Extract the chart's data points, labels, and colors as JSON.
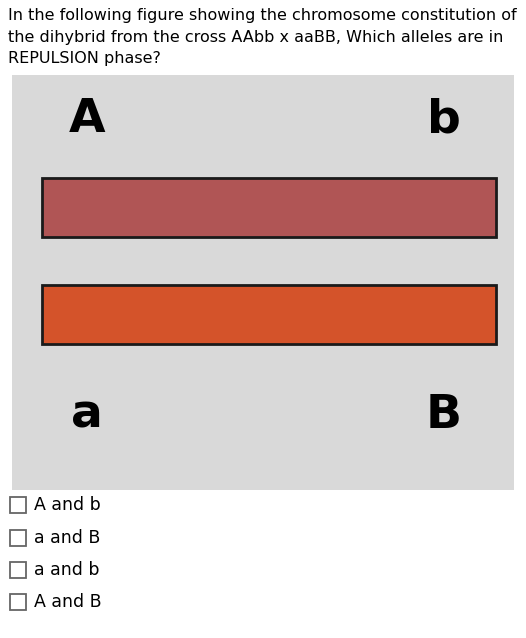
{
  "question_text": "In the following figure showing the chromosome constitution of\nthe dihybrid from the cross AAbb x aaBB, Which alleles are in\nREPULSION phase?",
  "question_fontsize": 11.5,
  "bg_color": "#d9d9d9",
  "chromosome_color_top": "#b05555",
  "chromosome_color_bottom": "#d4532a",
  "chromosome_border_color": "#1a1a1a",
  "label_A": "A",
  "label_b": "b",
  "label_a": "a",
  "label_B": "B",
  "label_fontsize": 34,
  "options": [
    "A and b",
    "a and B",
    "a and b",
    "A and B"
  ],
  "options_fontsize": 12.5,
  "white_bg": "#ffffff",
  "fig_width": 5.26,
  "fig_height": 6.38,
  "dpi": 100
}
